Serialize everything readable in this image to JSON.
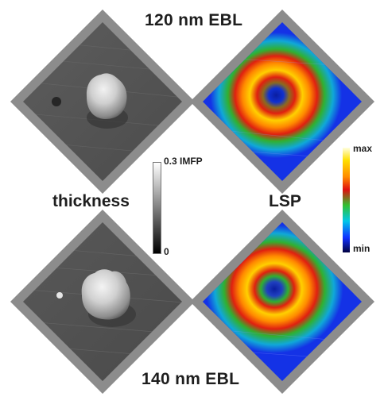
{
  "figure": {
    "top_title": "120 nm EBL",
    "bottom_title": "140 nm EBL",
    "left_label": "thickness",
    "right_label": "LSP"
  },
  "thickness_scale": {
    "max_label": "0.3 IMFP",
    "min_label": "0",
    "colors": [
      "#ffffff",
      "#000000"
    ]
  },
  "lsp_scale": {
    "max_label": "max",
    "min_label": "min",
    "colors": [
      "#ffffe0",
      "#ffe000",
      "#ff8a00",
      "#e01010",
      "#30c030",
      "#00c8e8",
      "#1030ff",
      "#000040"
    ]
  },
  "colors": {
    "frame": "#8c8c8c",
    "text": "#1e1e1e",
    "lsp_background": "#1432e6"
  }
}
